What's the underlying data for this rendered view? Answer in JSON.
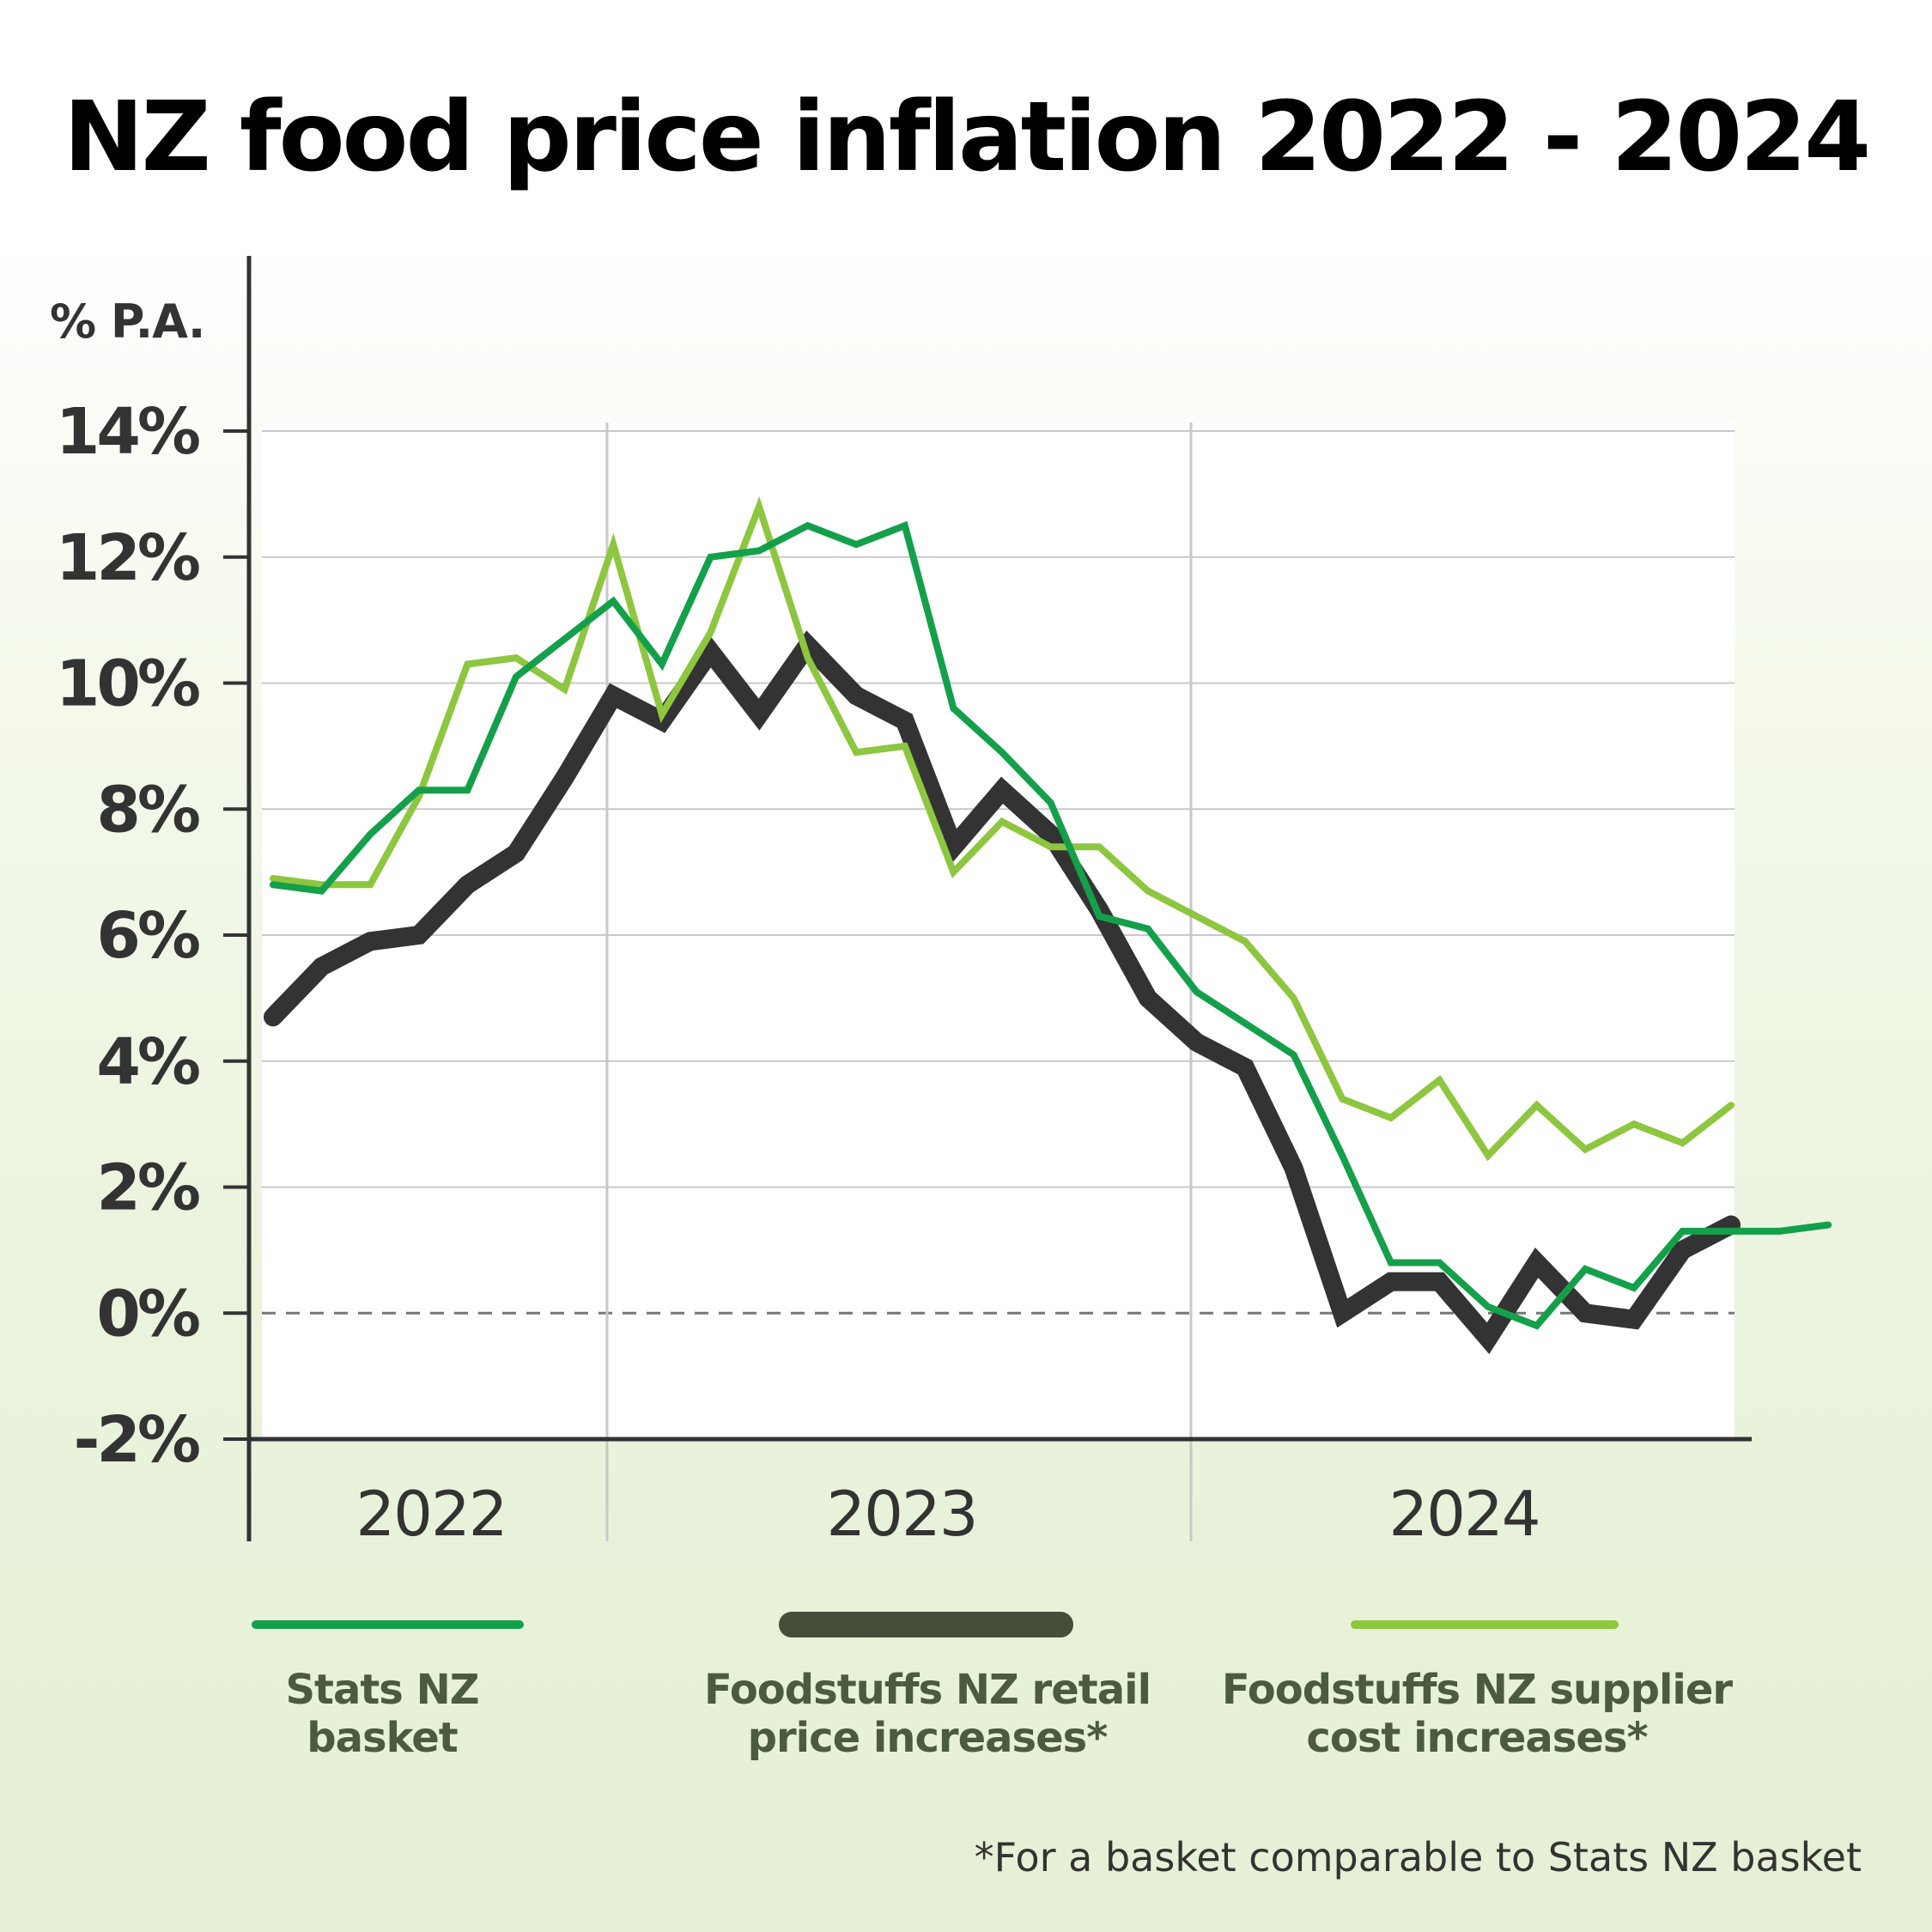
{
  "title": "NZ food price inflation 2022 - 2024",
  "colors": {
    "stats": "#14a04a",
    "retail": "#333333",
    "supplier": "#8dc63f",
    "retail_legend": "#454e38",
    "axis": "#333333",
    "grid": "#c8c8c8",
    "zero_line": "#777777"
  },
  "chart_data": {
    "type": "line",
    "ylabel": "% P.A.",
    "ylim": [
      -2,
      14
    ],
    "yticks": [
      -2,
      0,
      2,
      4,
      6,
      8,
      10,
      12,
      14
    ],
    "ytick_labels": [
      "-2%",
      "0%",
      "2%",
      "4%",
      "6%",
      "8%",
      "10%",
      "12%",
      "14%"
    ],
    "year_labels": [
      "2022",
      "2023",
      "2024"
    ],
    "months_per_year": 12,
    "series": [
      {
        "name": "Stats NZ basket",
        "key": "stats",
        "values": [
          6.8,
          6.7,
          7.6,
          8.3,
          8.3,
          10.1,
          10.7,
          11.3,
          10.3,
          12.0,
          12.1,
          12.5,
          12.2,
          12.5,
          9.6,
          8.9,
          8.1,
          6.3,
          6.1,
          5.1,
          4.6,
          4.1,
          2.5,
          0.8,
          0.8,
          0.1,
          -0.2,
          0.7,
          0.4,
          1.3,
          1.3,
          1.3,
          1.4
        ]
      },
      {
        "name": "Foodstuffs NZ retail price increases*",
        "key": "retail",
        "values": [
          4.7,
          5.5,
          5.9,
          6.0,
          6.8,
          7.3,
          8.5,
          9.8,
          9.4,
          10.5,
          9.5,
          10.6,
          9.8,
          9.4,
          7.4,
          8.3,
          7.6,
          6.4,
          5.0,
          4.3,
          3.9,
          2.3,
          0.0,
          0.5,
          0.5,
          -0.4,
          0.8,
          0.0,
          -0.1,
          1.0,
          1.4
        ]
      },
      {
        "name": "Foodstuffs NZ supplier cost increases*",
        "key": "supplier",
        "values": [
          6.9,
          6.8,
          6.8,
          8.2,
          10.3,
          10.4,
          9.9,
          12.2,
          9.5,
          10.8,
          12.8,
          10.4,
          8.9,
          9.0,
          7.0,
          7.8,
          7.4,
          7.4,
          6.7,
          6.3,
          5.9,
          5.0,
          3.4,
          3.1,
          3.7,
          2.5,
          3.3,
          2.6,
          3.0,
          2.7,
          3.3
        ]
      }
    ]
  },
  "legend": [
    {
      "key": "stats",
      "label": "Stats NZ basket",
      "line1": "Stats NZ",
      "line2": "basket"
    },
    {
      "key": "retail",
      "label": "Foodstuffs NZ retail price increases*",
      "line1": "Foodstuffs NZ retail",
      "line2": "price increases*"
    },
    {
      "key": "supplier",
      "label": "Foodstuffs NZ supplier cost increases*",
      "line1": "Foodstuffs NZ supplier",
      "line2": "cost increases*"
    }
  ],
  "footnote": "*For a basket comparable to Stats NZ basket"
}
